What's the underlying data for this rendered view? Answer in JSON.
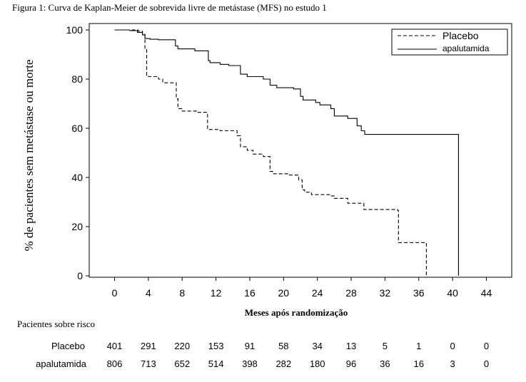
{
  "chart_data": {
    "type": "line",
    "title": "Figura 1: Curva de Kaplan-Meier de sobrevida livre de metástase (MFS) no estudo 1",
    "xlabel": "Meses após randomização",
    "ylabel": "% de pacientes sem metástase ou morte",
    "xlim": [
      -3,
      47
    ],
    "ylim": [
      0,
      100
    ],
    "x_ticks": [
      0,
      4,
      8,
      12,
      16,
      20,
      24,
      28,
      32,
      36,
      40,
      44
    ],
    "y_ticks": [
      0,
      20,
      40,
      60,
      80,
      100
    ],
    "x_tick_labels": [
      "0",
      "4",
      "8",
      "12",
      "16",
      "20",
      "24",
      "28",
      "32",
      "36",
      "40",
      "44"
    ],
    "y_tick_labels": [
      "0",
      "20",
      "40",
      "60",
      "80",
      "100"
    ],
    "legend_position": "top-right",
    "series": [
      {
        "name": "Placebo",
        "line_style": "dashed",
        "color": "#000000",
        "steps": [
          [
            0,
            100
          ],
          [
            2.8,
            99.5
          ],
          [
            3.3,
            98.5
          ],
          [
            3.6,
            92
          ],
          [
            3.8,
            81.5
          ],
          [
            4.0,
            81
          ],
          [
            5.2,
            80
          ],
          [
            5.7,
            78.5
          ],
          [
            7.3,
            72
          ],
          [
            7.5,
            68
          ],
          [
            8.0,
            67
          ],
          [
            9.7,
            66.5
          ],
          [
            11.0,
            59.5
          ],
          [
            12.5,
            59
          ],
          [
            14.5,
            57
          ],
          [
            14.9,
            52.5
          ],
          [
            15.7,
            51
          ],
          [
            16.4,
            49.5
          ],
          [
            17.6,
            48.5
          ],
          [
            18.4,
            42.5
          ],
          [
            18.7,
            41.5
          ],
          [
            20.5,
            41
          ],
          [
            21.8,
            39
          ],
          [
            22.2,
            35
          ],
          [
            22.5,
            34
          ],
          [
            23.3,
            33
          ],
          [
            25.5,
            32.5
          ],
          [
            26.0,
            31.5
          ],
          [
            27.6,
            29.5
          ],
          [
            29.5,
            27
          ],
          [
            33.5,
            26.5
          ],
          [
            33.6,
            13.5
          ],
          [
            36.9,
            0
          ]
        ]
      },
      {
        "name": "apalutamida",
        "line_style": "solid",
        "color": "#000000",
        "steps": [
          [
            0,
            100
          ],
          [
            1.8,
            99.7
          ],
          [
            2.7,
            99
          ],
          [
            3.3,
            98
          ],
          [
            3.6,
            96.5
          ],
          [
            4.2,
            96.2
          ],
          [
            5.2,
            96
          ],
          [
            7.2,
            93.5
          ],
          [
            7.5,
            92.3
          ],
          [
            9.5,
            91.5
          ],
          [
            11.1,
            87.5
          ],
          [
            11.3,
            86.7
          ],
          [
            12.5,
            86
          ],
          [
            13.5,
            85.5
          ],
          [
            14.9,
            82
          ],
          [
            15.7,
            81
          ],
          [
            17.6,
            80
          ],
          [
            18.4,
            77.5
          ],
          [
            19.2,
            76.5
          ],
          [
            21.2,
            76
          ],
          [
            22.0,
            73
          ],
          [
            22.3,
            71.5
          ],
          [
            23.8,
            70.5
          ],
          [
            24.3,
            69.5
          ],
          [
            25.6,
            68
          ],
          [
            26.0,
            65
          ],
          [
            27.6,
            64
          ],
          [
            28.7,
            61
          ],
          [
            29.2,
            59
          ],
          [
            29.6,
            57.5
          ],
          [
            40.7,
            0
          ]
        ]
      }
    ],
    "risk_table": {
      "title": "Pacientes sobre risco",
      "x": [
        0,
        4,
        8,
        12,
        16,
        20,
        24,
        28,
        32,
        36,
        40,
        44
      ],
      "rows": [
        {
          "label": "Placebo",
          "values": [
            "401",
            "291",
            "220",
            "153",
            "91",
            "58",
            "34",
            "13",
            "5",
            "1",
            "0",
            "0"
          ]
        },
        {
          "label": "apalutamida",
          "values": [
            "806",
            "713",
            "652",
            "514",
            "398",
            "282",
            "180",
            "96",
            "36",
            "16",
            "3",
            "0"
          ]
        }
      ]
    }
  }
}
